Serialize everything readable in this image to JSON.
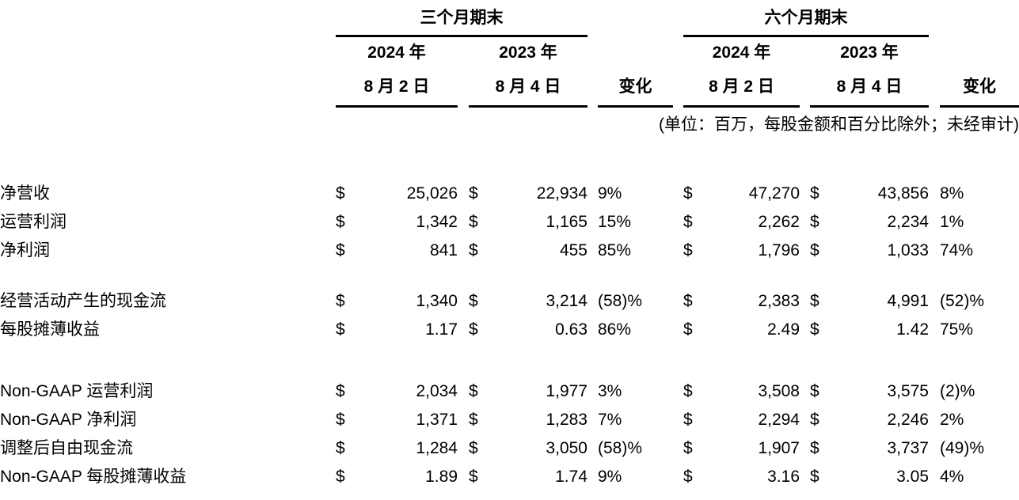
{
  "page": {
    "background_color": "#ffffff",
    "text_color": "#000000"
  },
  "table": {
    "currency_symbol": "$",
    "unit_note": "(单位：百万，每股金额和百分比除外；未经审计)",
    "sections": [
      {
        "title": "三个月期末",
        "col_2024_year": "2024 年",
        "col_2024_date": "8 月 2 日",
        "col_2023_year": "2023 年",
        "col_2023_date": "8 月 4 日",
        "change_label": "变化"
      },
      {
        "title": "六个月期末",
        "col_2024_year": "2024 年",
        "col_2024_date": "8 月 2 日",
        "col_2023_year": "2023 年",
        "col_2023_date": "8 月 4 日",
        "change_label": "变化"
      }
    ],
    "rows": [
      {
        "group": 1,
        "label": "净营收",
        "tm_2024": "25,026",
        "tm_2023": "22,934",
        "tm_change": "9%",
        "sm_2024": "47,270",
        "sm_2023": "43,856",
        "sm_change": "8%"
      },
      {
        "group": 1,
        "label": "运营利润",
        "tm_2024": "1,342",
        "tm_2023": "1,165",
        "tm_change": "15%",
        "sm_2024": "2,262",
        "sm_2023": "2,234",
        "sm_change": "1%"
      },
      {
        "group": 1,
        "label": "净利润",
        "tm_2024": "841",
        "tm_2023": "455",
        "tm_change": "85%",
        "sm_2024": "1,796",
        "sm_2023": "1,033",
        "sm_change": "74%"
      },
      {
        "group": 2,
        "label": "经营活动产生的现金流",
        "tm_2024": "1,340",
        "tm_2023": "3,214",
        "tm_change": "(58)%",
        "sm_2024": "2,383",
        "sm_2023": "4,991",
        "sm_change": "(52)%"
      },
      {
        "group": 2,
        "label": "每股摊薄收益",
        "tm_2024": "1.17",
        "tm_2023": "0.63",
        "tm_change": "86%",
        "sm_2024": "2.49",
        "sm_2023": "1.42",
        "sm_change": "75%"
      },
      {
        "group": 3,
        "label": "Non-GAAP 运营利润",
        "tm_2024": "2,034",
        "tm_2023": "1,977",
        "tm_change": "3%",
        "sm_2024": "3,508",
        "sm_2023": "3,575",
        "sm_change": "(2)%"
      },
      {
        "group": 3,
        "label": "Non-GAAP 净利润",
        "tm_2024": "1,371",
        "tm_2023": "1,283",
        "tm_change": "7%",
        "sm_2024": "2,294",
        "sm_2023": "2,246",
        "sm_change": "2%"
      },
      {
        "group": 3,
        "label": "调整后自由现金流",
        "tm_2024": "1,284",
        "tm_2023": "3,050",
        "tm_change": "(58)%",
        "sm_2024": "1,907",
        "sm_2023": "3,737",
        "sm_change": "(49)%"
      },
      {
        "group": 3,
        "label": "Non-GAAP 每股摊薄收益",
        "tm_2024": "1.89",
        "tm_2023": "1.74",
        "tm_change": "9%",
        "sm_2024": "3.16",
        "sm_2023": "3.05",
        "sm_change": "4%"
      }
    ]
  }
}
